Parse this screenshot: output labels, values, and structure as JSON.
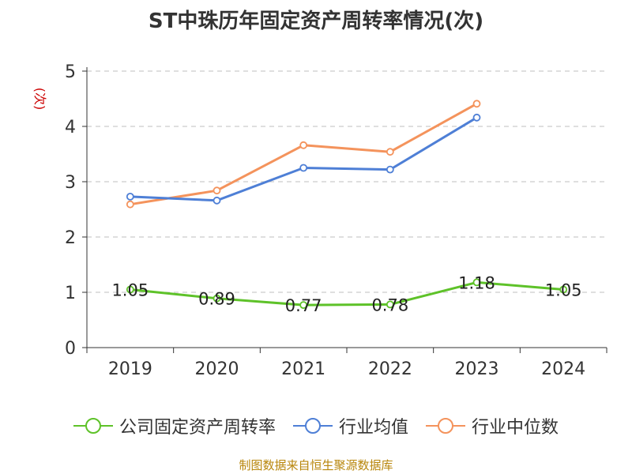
{
  "chart_data": {
    "type": "line",
    "title": "ST中珠历年固定资产周转率情况(次)",
    "ylabel": "(次)",
    "xlabel": "",
    "categories": [
      "2019",
      "2020",
      "2021",
      "2022",
      "2023",
      "2024"
    ],
    "ylim": [
      0,
      5
    ],
    "yticks": [
      0,
      1,
      2,
      3,
      4,
      5
    ],
    "grid": true,
    "legend_position": "bottom",
    "series": [
      {
        "name": "公司固定资产周转率",
        "color": "#5ec229",
        "values": [
          1.05,
          0.89,
          0.77,
          0.78,
          1.18,
          1.05
        ],
        "labels": [
          "1.05",
          "0.89",
          "0.77",
          "0.78",
          "1.18",
          "1.05"
        ]
      },
      {
        "name": "行业均值",
        "color": "#4e7fd6",
        "values": [
          2.73,
          2.66,
          3.25,
          3.22,
          4.16,
          null
        ]
      },
      {
        "name": "行业中位数",
        "color": "#f4935c",
        "values": [
          2.59,
          2.84,
          3.66,
          3.54,
          4.41,
          null
        ]
      }
    ]
  },
  "source": "制图数据来自恒生聚源数据库",
  "colors": {
    "axis": "#333333",
    "grid": "#cccccc",
    "ylabel": "#cc0000",
    "source": "#b8860b"
  }
}
